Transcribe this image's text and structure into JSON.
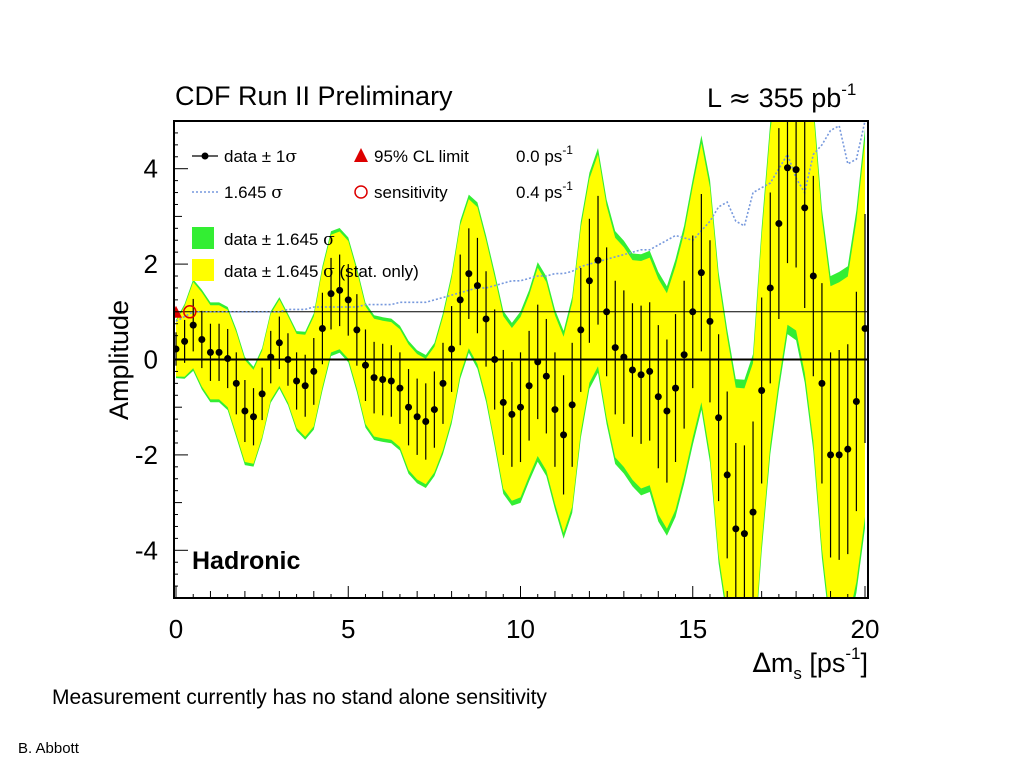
{
  "caption": "Measurement currently has no stand alone sensitivity",
  "author": "B. Abbott",
  "chart_data": {
    "type": "line",
    "title": "CDF Run II Preliminary",
    "luminosity": {
      "prefix": "L ",
      "symbol": "≈",
      "value": " 355 pb",
      "sup": "-1"
    },
    "xlabel": {
      "delta": "∆",
      "main": "m",
      "sub": "s",
      "unit": " [ps",
      "sup": "-1",
      "close": "]"
    },
    "ylabel": "Amplitude",
    "annotation": "Hadronic",
    "xlim": [
      0,
      20
    ],
    "ylim": [
      -5,
      5
    ],
    "x_ticks": [
      0,
      5,
      10,
      15,
      20
    ],
    "y_ticks": [
      -4,
      -2,
      0,
      2,
      4
    ],
    "reference_line": 1,
    "legend": {
      "data": {
        "label": "data ± 1",
        "sym": "σ"
      },
      "sig": {
        "label": "1.645 ",
        "sym": "σ"
      },
      "cl": {
        "label": "95% CL limit",
        "value": "0.0 ps",
        "sup": "-1"
      },
      "sens": {
        "label": "sensitivity",
        "value": "0.4 ps",
        "sup": "-1"
      },
      "green": {
        "label": "data ± 1.645 ",
        "sym": "σ"
      },
      "yellow": {
        "label": "data ± 1.645 ",
        "sym": "σ",
        "suffix": " (stat. only)"
      }
    },
    "markers": {
      "cl_limit": {
        "x": 0.0,
        "y": 1.0
      },
      "sensitivity": {
        "x": 0.4,
        "y": 1.0
      }
    },
    "colors": {
      "band_total": "#33ee33",
      "band_stat": "#ffff00",
      "sigma_line": "#7799dd",
      "points": "#000000",
      "cl": "#dd0000",
      "sens": "#dd0000"
    },
    "x": [
      0,
      0.25,
      0.5,
      0.75,
      1,
      1.25,
      1.5,
      1.75,
      2,
      2.25,
      2.5,
      2.75,
      3,
      3.25,
      3.5,
      3.75,
      4,
      4.25,
      4.5,
      4.75,
      5,
      5.25,
      5.5,
      5.75,
      6,
      6.25,
      6.5,
      6.75,
      7,
      7.25,
      7.5,
      7.75,
      8,
      8.25,
      8.5,
      8.75,
      9,
      9.25,
      9.5,
      9.75,
      10,
      10.25,
      10.5,
      10.75,
      11,
      11.25,
      11.5,
      11.75,
      12,
      12.25,
      12.5,
      12.75,
      13,
      13.25,
      13.5,
      13.75,
      14,
      14.25,
      14.5,
      14.75,
      15,
      15.25,
      15.5,
      15.75,
      16,
      16.25,
      16.5,
      16.75,
      17,
      17.25,
      17.5,
      17.75,
      18,
      18.25,
      18.5,
      18.75,
      19,
      19.25,
      19.5,
      19.75,
      20
    ],
    "amplitude": [
      0.22,
      0.38,
      0.72,
      0.42,
      0.15,
      0.15,
      0.02,
      -0.5,
      -1.08,
      -1.2,
      -0.72,
      0.05,
      0.35,
      0.0,
      -0.45,
      -0.55,
      -0.25,
      0.65,
      1.38,
      1.45,
      1.25,
      0.62,
      -0.12,
      -0.38,
      -0.42,
      -0.45,
      -0.6,
      -1.0,
      -1.2,
      -1.3,
      -1.05,
      -0.5,
      0.22,
      1.25,
      1.8,
      1.55,
      0.85,
      0.0,
      -0.9,
      -1.15,
      -1.0,
      -0.55,
      -0.05,
      -0.35,
      -1.05,
      -1.58,
      -0.95,
      0.62,
      1.65,
      2.08,
      1.0,
      0.25,
      0.05,
      -0.22,
      -0.32,
      -0.25,
      -0.78,
      -1.08,
      -0.6,
      0.1,
      1.0,
      1.82,
      0.8,
      -1.22,
      -2.42,
      -3.55,
      -3.65,
      -3.2,
      -0.65,
      1.5,
      2.85,
      4.02,
      3.98,
      3.18,
      1.75,
      -0.5,
      -2.0,
      -2.0,
      -1.88,
      -0.88,
      0.65
    ],
    "err_1sigma": [
      0.35,
      0.45,
      0.55,
      0.6,
      0.6,
      0.6,
      0.62,
      0.65,
      0.65,
      0.6,
      0.55,
      0.55,
      0.55,
      0.55,
      0.6,
      0.65,
      0.7,
      0.75,
      0.75,
      0.75,
      0.75,
      0.75,
      0.75,
      0.75,
      0.75,
      0.75,
      0.75,
      0.8,
      0.8,
      0.8,
      0.8,
      0.85,
      0.9,
      0.95,
      0.95,
      1.0,
      1.0,
      1.05,
      1.1,
      1.1,
      1.15,
      1.15,
      1.2,
      1.2,
      1.2,
      1.25,
      1.3,
      1.3,
      1.3,
      1.35,
      1.35,
      1.4,
      1.4,
      1.4,
      1.45,
      1.45,
      1.5,
      1.5,
      1.55,
      1.55,
      1.6,
      1.65,
      1.7,
      1.75,
      1.75,
      1.8,
      1.85,
      1.9,
      1.95,
      2.0,
      2.0,
      2.0,
      2.05,
      2.1,
      2.1,
      2.1,
      2.15,
      2.2,
      2.2,
      2.3,
      2.4
    ],
    "sigma_1645": [
      0.8,
      0.9,
      1.0,
      1.0,
      1.0,
      1.0,
      1.0,
      1.0,
      1.0,
      1.0,
      1.0,
      1.0,
      1.0,
      1.05,
      1.05,
      1.05,
      1.1,
      1.1,
      1.1,
      1.1,
      1.1,
      1.1,
      1.15,
      1.15,
      1.15,
      1.15,
      1.2,
      1.2,
      1.2,
      1.2,
      1.25,
      1.3,
      1.35,
      1.4,
      1.45,
      1.5,
      1.5,
      1.55,
      1.6,
      1.65,
      1.65,
      1.7,
      1.75,
      1.75,
      1.8,
      1.8,
      1.85,
      1.95,
      2.0,
      2.05,
      2.1,
      2.15,
      2.2,
      2.25,
      2.3,
      2.3,
      2.4,
      2.5,
      2.6,
      2.55,
      2.5,
      2.7,
      2.9,
      3.2,
      3.3,
      2.9,
      2.8,
      3.5,
      3.6,
      3.7,
      4.0,
      4.3,
      3.8,
      3.5,
      4.3,
      4.5,
      4.8,
      4.9,
      4.1,
      4.2,
      5.0
    ]
  }
}
